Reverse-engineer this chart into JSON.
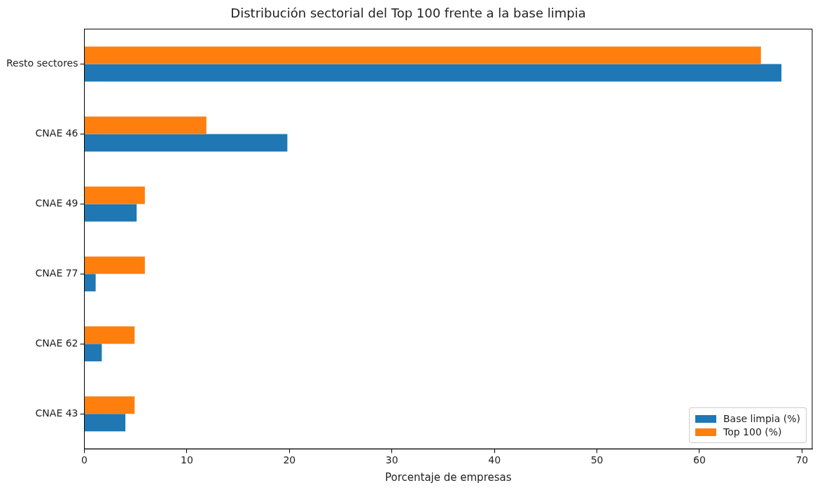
{
  "chart_data": {
    "type": "bar",
    "orientation": "horizontal",
    "title": "Distribución sectorial del Top 100 frente a la base limpia",
    "xlabel": "Porcentaje de empresas",
    "categories": [
      "Resto sectores",
      "CNAE 46",
      "CNAE 49",
      "CNAE 77",
      "CNAE 62",
      "CNAE 43"
    ],
    "series": [
      {
        "name": "Base limpia (%)",
        "color": "#1f77b4",
        "values": [
          68.0,
          19.8,
          5.1,
          1.1,
          1.7,
          4.0
        ]
      },
      {
        "name": "Top 100 (%)",
        "color": "#ff7f0e",
        "values": [
          66.0,
          11.9,
          5.9,
          5.9,
          4.9,
          4.9
        ]
      }
    ],
    "xlim": [
      0,
      71
    ],
    "xticks": [
      0,
      10,
      20,
      30,
      40,
      50,
      60,
      70
    ],
    "grid": false,
    "legend": "bottom right"
  }
}
